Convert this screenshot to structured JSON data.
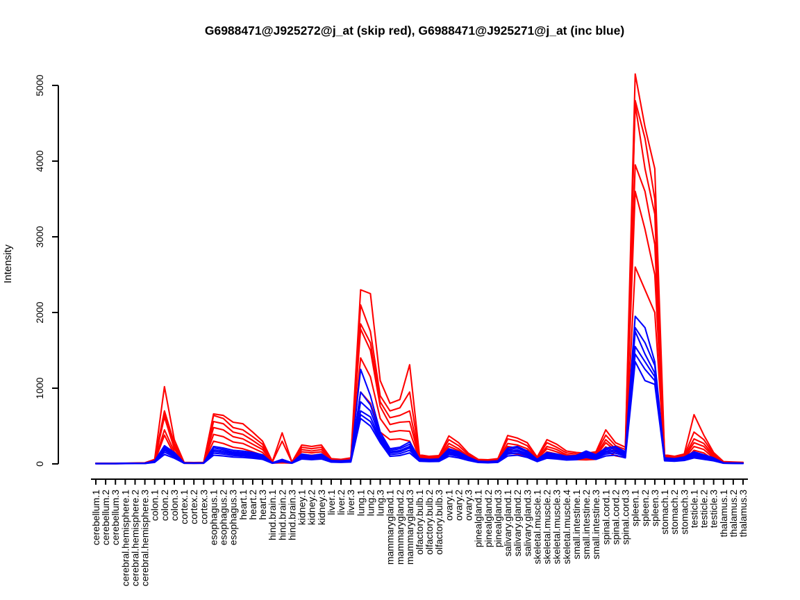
{
  "title": "G6988471@J925272@j_at (skip red), G6988471@J925271@j_at (inc blue)",
  "probes": [
    {
      "id": "G6988471@J925272@j_at",
      "variant": "skip",
      "color": "#FF0000"
    },
    {
      "id": "G6988471@J925271@j_at",
      "variant": "inc",
      "color": "#0000FF"
    }
  ],
  "chart_data": {
    "type": "line",
    "title": "G6988471@J925272@j_at (skip red), G6988471@J925271@j_at (inc blue)",
    "xlabel": "",
    "ylabel": "Intensity",
    "ylim": [
      0,
      5150
    ],
    "yticks": [
      0,
      1000,
      2000,
      3000,
      4000,
      5000
    ],
    "grid": false,
    "legend_position": "none (encoded in title)",
    "categories": [
      "cerebellum.1",
      "cerebellum.2",
      "cerebellum.3",
      "cerebral.hemisphere.1",
      "cerebral.hemisphere.2",
      "cerebral.hemisphere.3",
      "colon.1",
      "colon.2",
      "colon.3",
      "cortex.1",
      "cortex.2",
      "cortex.3",
      "esophagus.1",
      "esophagus.2",
      "esophagus.3",
      "heart.1",
      "heart.2",
      "heart.3",
      "hind.brain.1",
      "hind.brain.2",
      "hind.brain.3",
      "kidney.1",
      "kidney.2",
      "kidney.3",
      "liver.1",
      "liver.2",
      "liver.3",
      "lung.1",
      "lung.2",
      "lung.3",
      "mammarygland.1",
      "mammarygland.2",
      "mammarygland.3",
      "olfactory.bulb.1",
      "olfactory.bulb.2",
      "olfactory.bulb.3",
      "ovary.1",
      "ovary.2",
      "ovary.3",
      "pinealgland.1",
      "pinealgland.2",
      "pinealgland.3",
      "salivary.gland.1",
      "salivary.gland.2",
      "salivary.gland.3",
      "skeletal.muscle.1",
      "skeletal.muscle.2",
      "skeletal.muscle.3",
      "skeletal.muscle.4",
      "small.intestine.1",
      "small.intestine.2",
      "small.intestine.3",
      "spinal.cord.1",
      "spinal.cord.2",
      "spinal.cord.3",
      "spleen.1",
      "spleen.2",
      "spleen.3",
      "stomach.1",
      "stomach.2",
      "stomach.3",
      "testicle.1",
      "testicle.2",
      "testicle.3",
      "thalamus.1",
      "thalamus.2",
      "thalamus.3"
    ],
    "series": [
      {
        "name": "skip-rep1",
        "group": "G6988471@J925272@j_at (skip)",
        "color": "#FF0000",
        "values": [
          8,
          8,
          8,
          10,
          12,
          15,
          60,
          1020,
          320,
          20,
          18,
          20,
          660,
          640,
          550,
          530,
          420,
          300,
          30,
          410,
          25,
          250,
          230,
          250,
          70,
          60,
          80,
          2300,
          2250,
          1100,
          800,
          850,
          1310,
          120,
          100,
          110,
          370,
          280,
          140,
          60,
          55,
          70,
          375,
          340,
          280,
          90,
          320,
          260,
          170,
          150,
          140,
          160,
          450,
          280,
          220,
          5150,
          4450,
          3900,
          120,
          100,
          130,
          650,
          380,
          150,
          30,
          25,
          20
        ]
      },
      {
        "name": "skip-rep2",
        "group": "G6988471@J925272@j_at (skip)",
        "color": "#FF0000",
        "values": [
          7,
          7,
          7,
          9,
          10,
          13,
          55,
          700,
          270,
          17,
          15,
          17,
          640,
          600,
          480,
          450,
          360,
          260,
          25,
          300,
          22,
          220,
          200,
          220,
          60,
          50,
          70,
          2100,
          1750,
          900,
          700,
          740,
          950,
          100,
          85,
          95,
          320,
          240,
          120,
          50,
          48,
          60,
          330,
          300,
          240,
          75,
          280,
          220,
          145,
          130,
          120,
          140,
          380,
          240,
          190,
          4800,
          4300,
          3500,
          100,
          85,
          110,
          420,
          320,
          130,
          25,
          21,
          17
        ]
      },
      {
        "name": "skip-rep3",
        "group": "G6988471@J925272@j_at (skip)",
        "color": "#FF0000",
        "values": [
          6,
          6,
          6,
          8,
          9,
          11,
          48,
          660,
          230,
          15,
          13,
          15,
          560,
          530,
          420,
          390,
          310,
          220,
          22,
          28,
          19,
          190,
          170,
          190,
          52,
          45,
          60,
          1850,
          1600,
          820,
          610,
          640,
          700,
          86,
          72,
          80,
          270,
          200,
          100,
          44,
          40,
          50,
          270,
          250,
          200,
          65,
          230,
          190,
          120,
          110,
          100,
          120,
          320,
          200,
          160,
          4750,
          3900,
          3300,
          85,
          72,
          94,
          330,
          270,
          110,
          22,
          18,
          14
        ]
      },
      {
        "name": "skip-rep4",
        "group": "G6988471@J925272@j_at (skip)",
        "color": "#FF0000",
        "values": [
          5,
          5,
          5,
          7,
          8,
          10,
          42,
          620,
          200,
          13,
          11,
          13,
          480,
          450,
          360,
          330,
          260,
          190,
          19,
          24,
          16,
          160,
          145,
          160,
          44,
          38,
          50,
          1780,
          1500,
          760,
          520,
          550,
          560,
          74,
          62,
          68,
          230,
          175,
          87,
          38,
          34,
          43,
          230,
          210,
          175,
          56,
          200,
          160,
          105,
          93,
          87,
          100,
          280,
          175,
          140,
          3950,
          3600,
          2900,
          74,
          62,
          80,
          280,
          230,
          93,
          19,
          16,
          12
        ]
      },
      {
        "name": "skip-rep5",
        "group": "G6988471@J925272@j_at (skip)",
        "color": "#FF0000",
        "values": [
          4,
          4,
          4,
          6,
          7,
          8,
          34,
          450,
          160,
          10,
          9,
          10,
          390,
          360,
          290,
          270,
          210,
          150,
          15,
          20,
          13,
          125,
          115,
          125,
          35,
          30,
          40,
          1400,
          1150,
          600,
          420,
          440,
          430,
          60,
          50,
          55,
          185,
          140,
          70,
          30,
          28,
          35,
          190,
          170,
          140,
          45,
          160,
          130,
          85,
          75,
          70,
          80,
          225,
          140,
          110,
          3600,
          3100,
          2500,
          60,
          50,
          65,
          230,
          190,
          75,
          15,
          13,
          10
        ]
      },
      {
        "name": "skip-rep6",
        "group": "G6988471@J925272@j_at (skip)",
        "color": "#FF0000",
        "values": [
          3,
          3,
          3,
          5,
          5,
          6,
          26,
          380,
          120,
          8,
          7,
          8,
          300,
          270,
          220,
          200,
          160,
          115,
          11,
          15,
          10,
          95,
          87,
          95,
          27,
          23,
          30,
          950,
          800,
          420,
          320,
          330,
          300,
          45,
          38,
          42,
          140,
          106,
          53,
          23,
          21,
          27,
          143,
          130,
          106,
          34,
          122,
          99,
          65,
          57,
          53,
          61,
          170,
          106,
          84,
          2600,
          2300,
          2000,
          46,
          38,
          49,
          180,
          144,
          57,
          11,
          10,
          8
        ]
      },
      {
        "name": "inc-rep1",
        "group": "G6988471@J925271@j_at (inc)",
        "color": "#0000FF",
        "values": [
          6,
          6,
          6,
          8,
          9,
          10,
          40,
          240,
          150,
          15,
          14,
          15,
          230,
          210,
          180,
          170,
          150,
          120,
          15,
          60,
          15,
          130,
          110,
          130,
          45,
          40,
          50,
          1250,
          900,
          420,
          200,
          220,
          290,
          70,
          60,
          65,
          200,
          160,
          90,
          35,
          30,
          40,
          210,
          230,
          170,
          60,
          150,
          130,
          100,
          110,
          170,
          120,
          210,
          230,
          160,
          1950,
          1800,
          1350,
          80,
          70,
          90,
          160,
          120,
          80,
          15,
          12,
          10
        ]
      },
      {
        "name": "inc-rep2",
        "group": "G6988471@J925271@j_at (inc)",
        "color": "#0000FF",
        "values": [
          5,
          5,
          5,
          7,
          8,
          9,
          36,
          220,
          135,
          13,
          13,
          13,
          210,
          190,
          160,
          150,
          135,
          110,
          13,
          54,
          13,
          117,
          99,
          117,
          40,
          36,
          45,
          950,
          780,
          380,
          180,
          200,
          260,
          63,
          54,
          58,
          180,
          144,
          81,
          31,
          27,
          36,
          190,
          210,
          155,
          54,
          135,
          117,
          90,
          99,
          155,
          110,
          190,
          210,
          145,
          1800,
          1600,
          1300,
          72,
          63,
          81,
          144,
          110,
          72,
          13,
          11,
          9
        ]
      },
      {
        "name": "inc-rep3",
        "group": "G6988471@J925271@j_at (inc)",
        "color": "#0000FF",
        "values": [
          5,
          5,
          5,
          6,
          7,
          8,
          32,
          200,
          120,
          12,
          11,
          12,
          185,
          170,
          145,
          135,
          120,
          95,
          12,
          48,
          12,
          104,
          88,
          104,
          36,
          32,
          40,
          820,
          700,
          350,
          160,
          175,
          230,
          56,
          48,
          52,
          160,
          130,
          72,
          28,
          24,
          32,
          170,
          185,
          135,
          48,
          120,
          104,
          80,
          88,
          135,
          96,
          170,
          185,
          130,
          1750,
          1450,
          1200,
          64,
          56,
          72,
          130,
          96,
          64,
          12,
          10,
          8
        ]
      },
      {
        "name": "inc-rep4",
        "group": "G6988471@J925271@j_at (inc)",
        "color": "#0000FF",
        "values": [
          4,
          4,
          4,
          6,
          6,
          7,
          29,
          180,
          108,
          11,
          10,
          11,
          165,
          150,
          130,
          120,
          110,
          86,
          11,
          43,
          11,
          94,
          79,
          94,
          32,
          29,
          36,
          700,
          620,
          320,
          145,
          160,
          210,
          50,
          43,
          47,
          145,
          115,
          65,
          25,
          22,
          29,
          150,
          165,
          120,
          43,
          110,
          94,
          72,
          79,
          120,
          86,
          150,
          165,
          115,
          1550,
          1350,
          1150,
          58,
          50,
          65,
          115,
          86,
          58,
          11,
          9,
          7
        ]
      },
      {
        "name": "inc-rep5",
        "group": "G6988471@J925271@j_at (inc)",
        "color": "#0000FF",
        "values": [
          4,
          4,
          4,
          5,
          6,
          6,
          25,
          155,
          93,
          9,
          9,
          9,
          143,
          130,
          112,
          105,
          93,
          74,
          9,
          37,
          9,
          81,
          68,
          81,
          28,
          25,
          31,
          650,
          560,
          300,
          124,
          136,
          180,
          43,
          37,
          40,
          124,
          99,
          56,
          22,
          19,
          25,
          130,
          143,
          105,
          37,
          93,
          81,
          62,
          68,
          105,
          74,
          130,
          143,
          99,
          1450,
          1250,
          1100,
          50,
          43,
          56,
          99,
          74,
          50,
          9,
          7,
          6
        ]
      },
      {
        "name": "inc-rep6",
        "group": "G6988471@J925271@j_at (inc)",
        "color": "#0000FF",
        "values": [
          3,
          3,
          3,
          4,
          5,
          5,
          20,
          125,
          75,
          8,
          7,
          8,
          115,
          105,
          90,
          85,
          75,
          60,
          8,
          30,
          8,
          65,
          55,
          65,
          23,
          20,
          25,
          600,
          500,
          280,
          100,
          110,
          145,
          35,
          30,
          33,
          100,
          80,
          45,
          18,
          15,
          20,
          105,
          115,
          85,
          30,
          75,
          65,
          50,
          55,
          85,
          60,
          105,
          115,
          80,
          1350,
          1100,
          1050,
          40,
          35,
          45,
          80,
          60,
          40,
          8,
          6,
          5
        ]
      }
    ]
  }
}
